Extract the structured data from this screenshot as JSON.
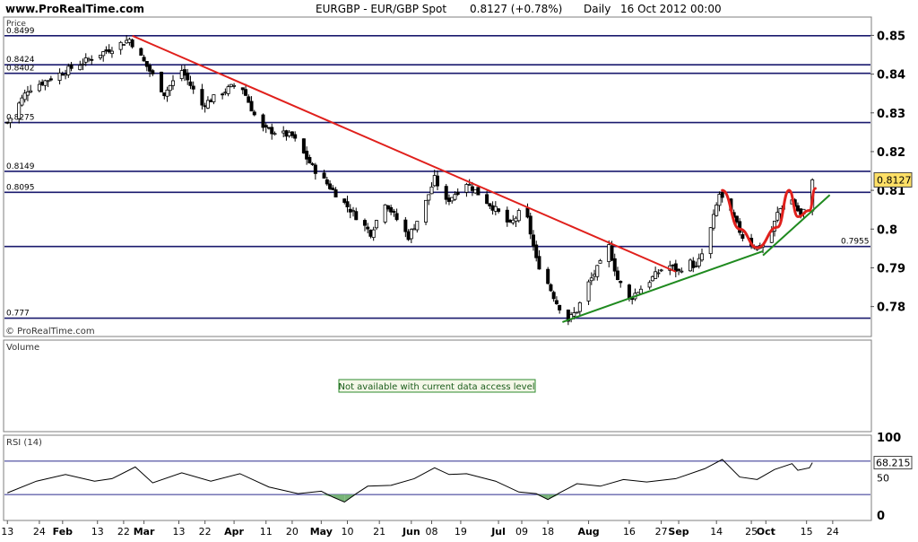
{
  "header": {
    "site": "www.ProRealTime.com",
    "symbol": "EURGBP - EUR/GBP Spot",
    "last": "0.8127 (+0.78%)",
    "period": "Daily",
    "date": "16 Oct 2012 00:00"
  },
  "watermark": "© ProRealTime.com",
  "colors": {
    "frame": "#7f7f7f",
    "hline": "#1a1a6e",
    "down_trend": "#e0201c",
    "up_trend": "#1f8a1f",
    "arc": "#e0201c",
    "rsi_line": "#000000",
    "rsi_fill": "#78b478",
    "price_badge": "#ffe066",
    "notice_bg": "#f4f7e8",
    "notice_border": "#2e8b2e"
  },
  "chart_data": [
    {
      "type": "candlestick",
      "title": "Price",
      "yaxis": {
        "range": [
          0.7725,
          0.8545
        ],
        "ticks": [
          0.78,
          0.79,
          0.8,
          0.81,
          0.82,
          0.83,
          0.84,
          0.85
        ],
        "tick_labels": [
          "0.78",
          "0.79",
          "0.8",
          "0.81",
          "0.82",
          "0.83",
          "0.84",
          "0.85"
        ]
      },
      "xaxis": {
        "range_days": [
          -1,
          297
        ],
        "ticks": [
          {
            "day": 0,
            "label": "13"
          },
          {
            "day": 11,
            "label": "24"
          },
          {
            "day": 19,
            "label": "Feb",
            "bold": true
          },
          {
            "day": 31,
            "label": "13"
          },
          {
            "day": 40,
            "label": "22"
          },
          {
            "day": 47,
            "label": "Mar",
            "bold": true
          },
          {
            "day": 59,
            "label": "13"
          },
          {
            "day": 68,
            "label": "22"
          },
          {
            "day": 78,
            "label": "Apr",
            "bold": true
          },
          {
            "day": 89,
            "label": "11"
          },
          {
            "day": 98,
            "label": "20"
          },
          {
            "day": 108,
            "label": "May",
            "bold": true
          },
          {
            "day": 117,
            "label": "10"
          },
          {
            "day": 128,
            "label": "21"
          },
          {
            "day": 139,
            "label": "Jun",
            "bold": true
          },
          {
            "day": 146,
            "label": "08"
          },
          {
            "day": 156,
            "label": "19"
          },
          {
            "day": 169,
            "label": "Jul",
            "bold": true
          },
          {
            "day": 177,
            "label": "09"
          },
          {
            "day": 186,
            "label": "18"
          },
          {
            "day": 200,
            "label": "Aug",
            "bold": true
          },
          {
            "day": 214,
            "label": "16"
          },
          {
            "day": 225,
            "label": "27"
          },
          {
            "day": 231,
            "label": "Sep",
            "bold": true
          },
          {
            "day": 244,
            "label": "14"
          },
          {
            "day": 256,
            "label": "25"
          },
          {
            "day": 261,
            "label": "Oct",
            "bold": true
          },
          {
            "day": 275,
            "label": "15"
          },
          {
            "day": 284,
            "label": "24"
          }
        ]
      },
      "horizontal_lines": [
        {
          "value": 0.8499,
          "label": "0.8499"
        },
        {
          "value": 0.8424,
          "label": "0.8424"
        },
        {
          "value": 0.8402,
          "label": "0.8402"
        },
        {
          "value": 0.8275,
          "label": "0.8275"
        },
        {
          "value": 0.8149,
          "label": "0.8149"
        },
        {
          "value": 0.8095,
          "label": "0.8095"
        },
        {
          "value": 0.7955,
          "label": "0.7955",
          "label_side": "right"
        },
        {
          "value": 0.777,
          "label": "0.777"
        }
      ],
      "current_price": 0.8127,
      "current_price_label": "0.8127",
      "key_points": [
        {
          "date": "Jan 13",
          "day": 0,
          "close": 0.8275
        },
        {
          "date": "Jan 20",
          "day": 7,
          "close": 0.836
        },
        {
          "date": "Feb 24",
          "day": 42,
          "close": 0.849
        },
        {
          "date": "Mar 07",
          "day": 54,
          "close": 0.835
        },
        {
          "date": "Mar 13",
          "day": 60,
          "close": 0.841
        },
        {
          "date": "Mar 20",
          "day": 67,
          "close": 0.832
        },
        {
          "date": "Apr 02",
          "day": 80,
          "close": 0.838
        },
        {
          "date": "Apr 09",
          "day": 87,
          "close": 0.826
        },
        {
          "date": "Apr 20",
          "day": 98,
          "close": 0.824
        },
        {
          "date": "Apr 27",
          "day": 105,
          "close": 0.816
        },
        {
          "date": "May 04",
          "day": 112,
          "close": 0.81
        },
        {
          "date": "May 10",
          "day": 118,
          "close": 0.805
        },
        {
          "date": "May 17",
          "day": 125,
          "close": 0.799
        },
        {
          "date": "May 22",
          "day": 130,
          "close": 0.807
        },
        {
          "date": "May 30",
          "day": 138,
          "close": 0.798
        },
        {
          "date": "Jun 04",
          "day": 143,
          "close": 0.805
        },
        {
          "date": "Jun 08",
          "day": 147,
          "close": 0.813
        },
        {
          "date": "Jun 12",
          "day": 151,
          "close": 0.807
        },
        {
          "date": "Jun 19",
          "day": 158,
          "close": 0.812
        },
        {
          "date": "Jun 29",
          "day": 168,
          "close": 0.805
        },
        {
          "date": "Jul 04",
          "day": 173,
          "close": 0.801
        },
        {
          "date": "Jul 09",
          "day": 178,
          "close": 0.806
        },
        {
          "date": "Jul 13",
          "day": 182,
          "close": 0.792
        },
        {
          "date": "Jul 17",
          "day": 186,
          "close": 0.786
        },
        {
          "date": "Jul 20",
          "day": 189,
          "close": 0.781
        },
        {
          "date": "Jul 24",
          "day": 193,
          "close": 0.7765
        },
        {
          "date": "Jul 27",
          "day": 196,
          "close": 0.779
        },
        {
          "date": "Jul 31",
          "day": 200,
          "close": 0.786
        },
        {
          "date": "Aug 04",
          "day": 204,
          "close": 0.791
        },
        {
          "date": "Aug 07",
          "day": 207,
          "close": 0.7955
        },
        {
          "date": "Aug 10",
          "day": 210,
          "close": 0.787
        },
        {
          "date": "Aug 14",
          "day": 214,
          "close": 0.782
        },
        {
          "date": "Aug 20",
          "day": 220,
          "close": 0.786
        },
        {
          "date": "Aug 27",
          "day": 227,
          "close": 0.791
        },
        {
          "date": "Aug 31",
          "day": 231,
          "close": 0.789
        },
        {
          "date": "Sep 03",
          "day": 234,
          "close": 0.792
        },
        {
          "date": "Sep 06",
          "day": 237,
          "close": 0.79
        },
        {
          "date": "Sep 10",
          "day": 241,
          "close": 0.797
        },
        {
          "date": "Sep 14",
          "day": 245,
          "close": 0.809
        },
        {
          "date": "Sep 18",
          "day": 249,
          "close": 0.804
        },
        {
          "date": "Sep 22",
          "day": 253,
          "close": 0.798
        },
        {
          "date": "Sep 27",
          "day": 258,
          "close": 0.795
        },
        {
          "date": "Oct 01",
          "day": 262,
          "close": 0.797
        },
        {
          "date": "Oct 04",
          "day": 265,
          "close": 0.804
        },
        {
          "date": "Oct 08",
          "day": 269,
          "close": 0.809
        },
        {
          "date": "Oct 10",
          "day": 271,
          "close": 0.806
        },
        {
          "date": "Oct 12",
          "day": 273,
          "close": 0.8035
        },
        {
          "date": "Oct 15",
          "day": 276,
          "close": 0.8065
        },
        {
          "date": "Oct 16",
          "day": 277,
          "close": 0.8127
        }
      ],
      "trendlines": [
        {
          "kind": "downtrend",
          "color": "#e0201c",
          "from": {
            "day": 43,
            "value": 0.8499
          },
          "to": {
            "day": 230,
            "value": 0.789
          }
        },
        {
          "kind": "uptrend",
          "color": "#1f8a1f",
          "from": {
            "day": 191,
            "value": 0.776
          },
          "to": {
            "day": 260,
            "value": 0.7943
          }
        },
        {
          "kind": "uptrend",
          "color": "#1f8a1f",
          "from": {
            "day": 260,
            "value": 0.7932
          },
          "to": {
            "day": 283,
            "value": 0.8088
          }
        }
      ],
      "arcs": [
        {
          "color": "#e0201c",
          "points": [
            {
              "day": 246,
              "value": 0.81
            },
            {
              "day": 252,
              "value": 0.8
            },
            {
              "day": 258,
              "value": 0.7952
            },
            {
              "day": 265,
              "value": 0.8005
            },
            {
              "day": 269,
              "value": 0.81
            }
          ]
        },
        {
          "color": "#e0201c",
          "points": [
            {
              "day": 269,
              "value": 0.81
            },
            {
              "day": 272,
              "value": 0.8032
            },
            {
              "day": 276,
              "value": 0.8048
            },
            {
              "day": 278,
              "value": 0.8105
            }
          ]
        }
      ]
    },
    {
      "type": "volume",
      "title": "Volume",
      "notice": "Not available with current data access level"
    },
    {
      "type": "line",
      "title": "RSI (14)",
      "yaxis": {
        "range": [
          0,
          100
        ],
        "ticks": [
          0,
          50,
          100
        ],
        "tick_labels": [
          "0",
          "50",
          "100"
        ]
      },
      "reference_lines": [
        70,
        30
      ],
      "current_value": 68.215,
      "current_value_label": "68.215",
      "x": [
        0,
        10,
        20,
        30,
        36,
        44,
        50,
        60,
        70,
        80,
        90,
        100,
        108,
        112,
        116,
        120,
        124,
        132,
        140,
        147,
        152,
        158,
        168,
        176,
        182,
        186,
        190,
        196,
        204,
        212,
        220,
        230,
        240,
        246,
        252,
        258,
        264,
        270,
        272,
        276,
        277
      ],
      "values": [
        32,
        46,
        54,
        46,
        49,
        63,
        44,
        56,
        46,
        55,
        39,
        31,
        34,
        27,
        21,
        31,
        40,
        41,
        49,
        62,
        54,
        55,
        46,
        33,
        31,
        24,
        32,
        43,
        40,
        48,
        45,
        49,
        61,
        72,
        51,
        48,
        60,
        67,
        59,
        62,
        68.2
      ]
    }
  ]
}
